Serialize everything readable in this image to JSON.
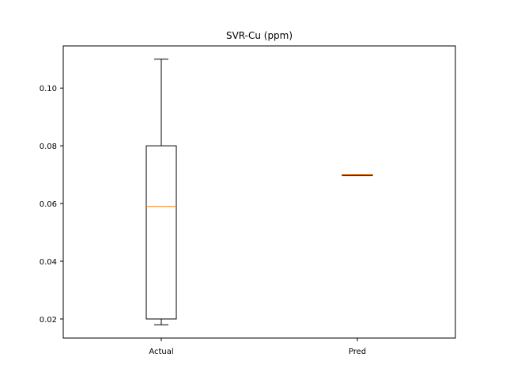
{
  "chart_data": {
    "type": "box",
    "title": "SVR-Cu (ppm)",
    "xlabel": "",
    "ylabel": "",
    "categories": [
      "Actual",
      "Pred"
    ],
    "boxes": [
      {
        "name": "Actual",
        "whislo": 0.018,
        "q1": 0.02,
        "median": 0.059,
        "q3": 0.08,
        "whishi": 0.11
      },
      {
        "name": "Pred",
        "whislo": 0.07,
        "q1": 0.07,
        "median": 0.07,
        "q3": 0.07,
        "whishi": 0.07
      }
    ],
    "yticks": [
      0.02,
      0.04,
      0.06,
      0.08,
      0.1
    ],
    "ytick_labels": [
      "0.02",
      "0.04",
      "0.06",
      "0.08",
      "0.10"
    ],
    "ylim": [
      0.0134,
      0.1146
    ],
    "grid": false,
    "colors": {
      "box": "#000000",
      "median": "#ff7f0e",
      "background": "#ffffff"
    }
  }
}
